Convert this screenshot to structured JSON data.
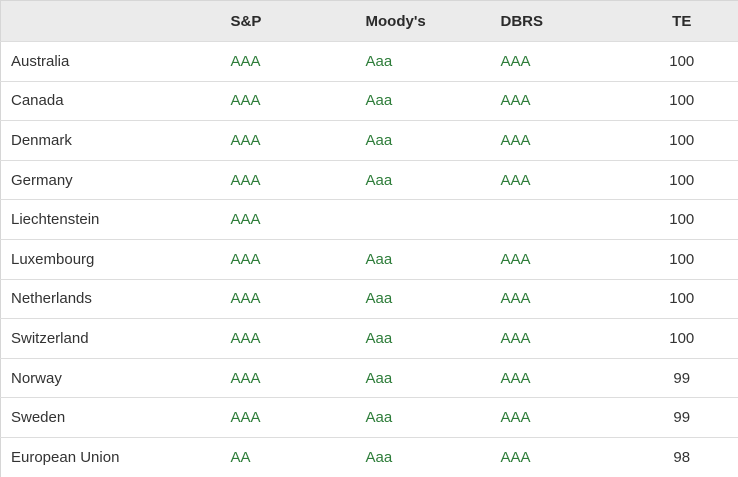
{
  "table": {
    "title": "sovereign-credit-ratings",
    "columns": [
      {
        "key": "country",
        "label": ""
      },
      {
        "key": "sp",
        "label": "S&P"
      },
      {
        "key": "moodys",
        "label": "Moody's"
      },
      {
        "key": "dbrs",
        "label": "DBRS"
      },
      {
        "key": "te",
        "label": "TE"
      }
    ],
    "rows": [
      {
        "country": "Australia",
        "sp": "AAA",
        "moodys": "Aaa",
        "dbrs": "AAA",
        "te": "100"
      },
      {
        "country": "Canada",
        "sp": "AAA",
        "moodys": "Aaa",
        "dbrs": "AAA",
        "te": "100"
      },
      {
        "country": "Denmark",
        "sp": "AAA",
        "moodys": "Aaa",
        "dbrs": "AAA",
        "te": "100"
      },
      {
        "country": "Germany",
        "sp": "AAA",
        "moodys": "Aaa",
        "dbrs": "AAA",
        "te": "100"
      },
      {
        "country": "Liechtenstein",
        "sp": "AAA",
        "moodys": "",
        "dbrs": "",
        "te": "100"
      },
      {
        "country": "Luxembourg",
        "sp": "AAA",
        "moodys": "Aaa",
        "dbrs": "AAA",
        "te": "100"
      },
      {
        "country": "Netherlands",
        "sp": "AAA",
        "moodys": "Aaa",
        "dbrs": "AAA",
        "te": "100"
      },
      {
        "country": "Switzerland",
        "sp": "AAA",
        "moodys": "Aaa",
        "dbrs": "AAA",
        "te": "100"
      },
      {
        "country": "Norway",
        "sp": "AAA",
        "moodys": "Aaa",
        "dbrs": "AAA",
        "te": "99"
      },
      {
        "country": "Sweden",
        "sp": "AAA",
        "moodys": "Aaa",
        "dbrs": "AAA",
        "te": "99"
      },
      {
        "country": "European Union",
        "sp": "AA",
        "moodys": "Aaa",
        "dbrs": "AAA",
        "te": "98"
      }
    ]
  },
  "colors": {
    "rating_green": "#2e7d3a",
    "header_bg": "#ebebeb",
    "text_dark": "#333333",
    "row_border": "#dddddd"
  }
}
